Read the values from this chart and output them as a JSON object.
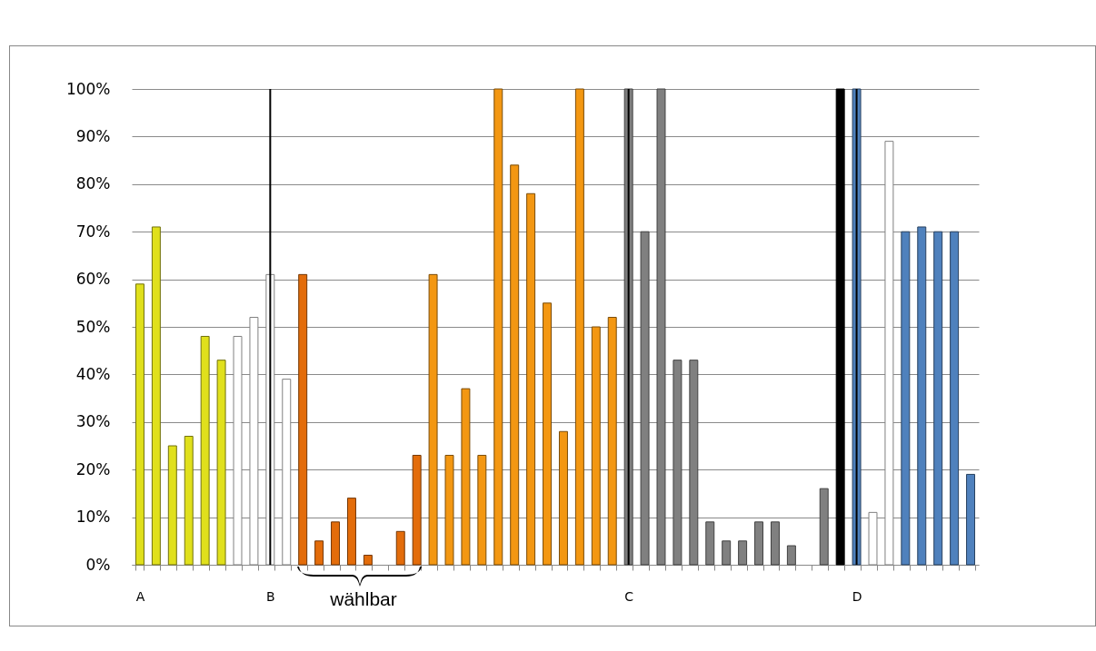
{
  "chart_data": {
    "type": "bar",
    "categories": [
      "A",
      null,
      null,
      null,
      null,
      null,
      null,
      null,
      "B",
      null,
      null,
      null,
      null,
      null,
      null,
      null,
      null,
      null,
      null,
      null,
      null,
      null,
      null,
      null,
      null,
      null,
      null,
      null,
      null,
      null,
      "C",
      null,
      null,
      null,
      null,
      null,
      null,
      null,
      null,
      null,
      null,
      null,
      null,
      null,
      "D",
      null,
      null,
      null,
      null,
      null,
      null,
      null
    ],
    "values": [
      59,
      71,
      25,
      27,
      48,
      43,
      48,
      52,
      61,
      39,
      61,
      5,
      9,
      14,
      2,
      null,
      7,
      23,
      61,
      23,
      37,
      23,
      100,
      84,
      78,
      55,
      28,
      100,
      50,
      52,
      100,
      70,
      100,
      43,
      43,
      9,
      5,
      5,
      9,
      9,
      4,
      null,
      16,
      100,
      100,
      11,
      89,
      70,
      71,
      70,
      70,
      19
    ],
    "colors": [
      "#e0e01c",
      "#e0e01c",
      "#e0e01c",
      "#e0e01c",
      "#e0e01c",
      "#e0e01c",
      "#ffffff",
      "#ffffff",
      "#ffffff",
      "#ffffff",
      "#e36c0a",
      "#e36c0a",
      "#e36c0a",
      "#e36c0a",
      "#e36c0a",
      "#e36c0a",
      "#e36c0a",
      "#e36c0a",
      "#f39712",
      "#f39712",
      "#f39712",
      "#f39712",
      "#f39712",
      "#f39712",
      "#f39712",
      "#f39712",
      "#f39712",
      "#f39712",
      "#f39712",
      "#f39712",
      "#808080",
      "#808080",
      "#808080",
      "#808080",
      "#808080",
      "#808080",
      "#808080",
      "#808080",
      "#808080",
      "#808080",
      "#808080",
      "#808080",
      "#808080",
      "#000000",
      "#4f81bd",
      "#ffffff",
      "#ffffff",
      "#4f81bd",
      "#4f81bd",
      "#4f81bd",
      "#4f81bd",
      "#4f81bd"
    ],
    "ylim": [
      0,
      100
    ],
    "yticks": [
      {
        "value": 0,
        "label": "0%"
      },
      {
        "value": 10,
        "label": "10%"
      },
      {
        "value": 20,
        "label": "20%"
      },
      {
        "value": 30,
        "label": "30%"
      },
      {
        "value": 40,
        "label": "40%"
      },
      {
        "value": 50,
        "label": "50%"
      },
      {
        "value": 60,
        "label": "60%"
      },
      {
        "value": 70,
        "label": "70%"
      },
      {
        "value": 80,
        "label": "80%"
      },
      {
        "value": 90,
        "label": "90%"
      },
      {
        "value": 100,
        "label": "100%"
      }
    ],
    "grid": "y",
    "ref_lines": [
      {
        "axis": "x",
        "value": "B",
        "color": "#000000"
      },
      {
        "axis": "x",
        "value": "C",
        "color": "#000000"
      },
      {
        "axis": "x",
        "value": "D",
        "color": "#000000"
      }
    ],
    "annotations": [
      "wählbar"
    ]
  }
}
